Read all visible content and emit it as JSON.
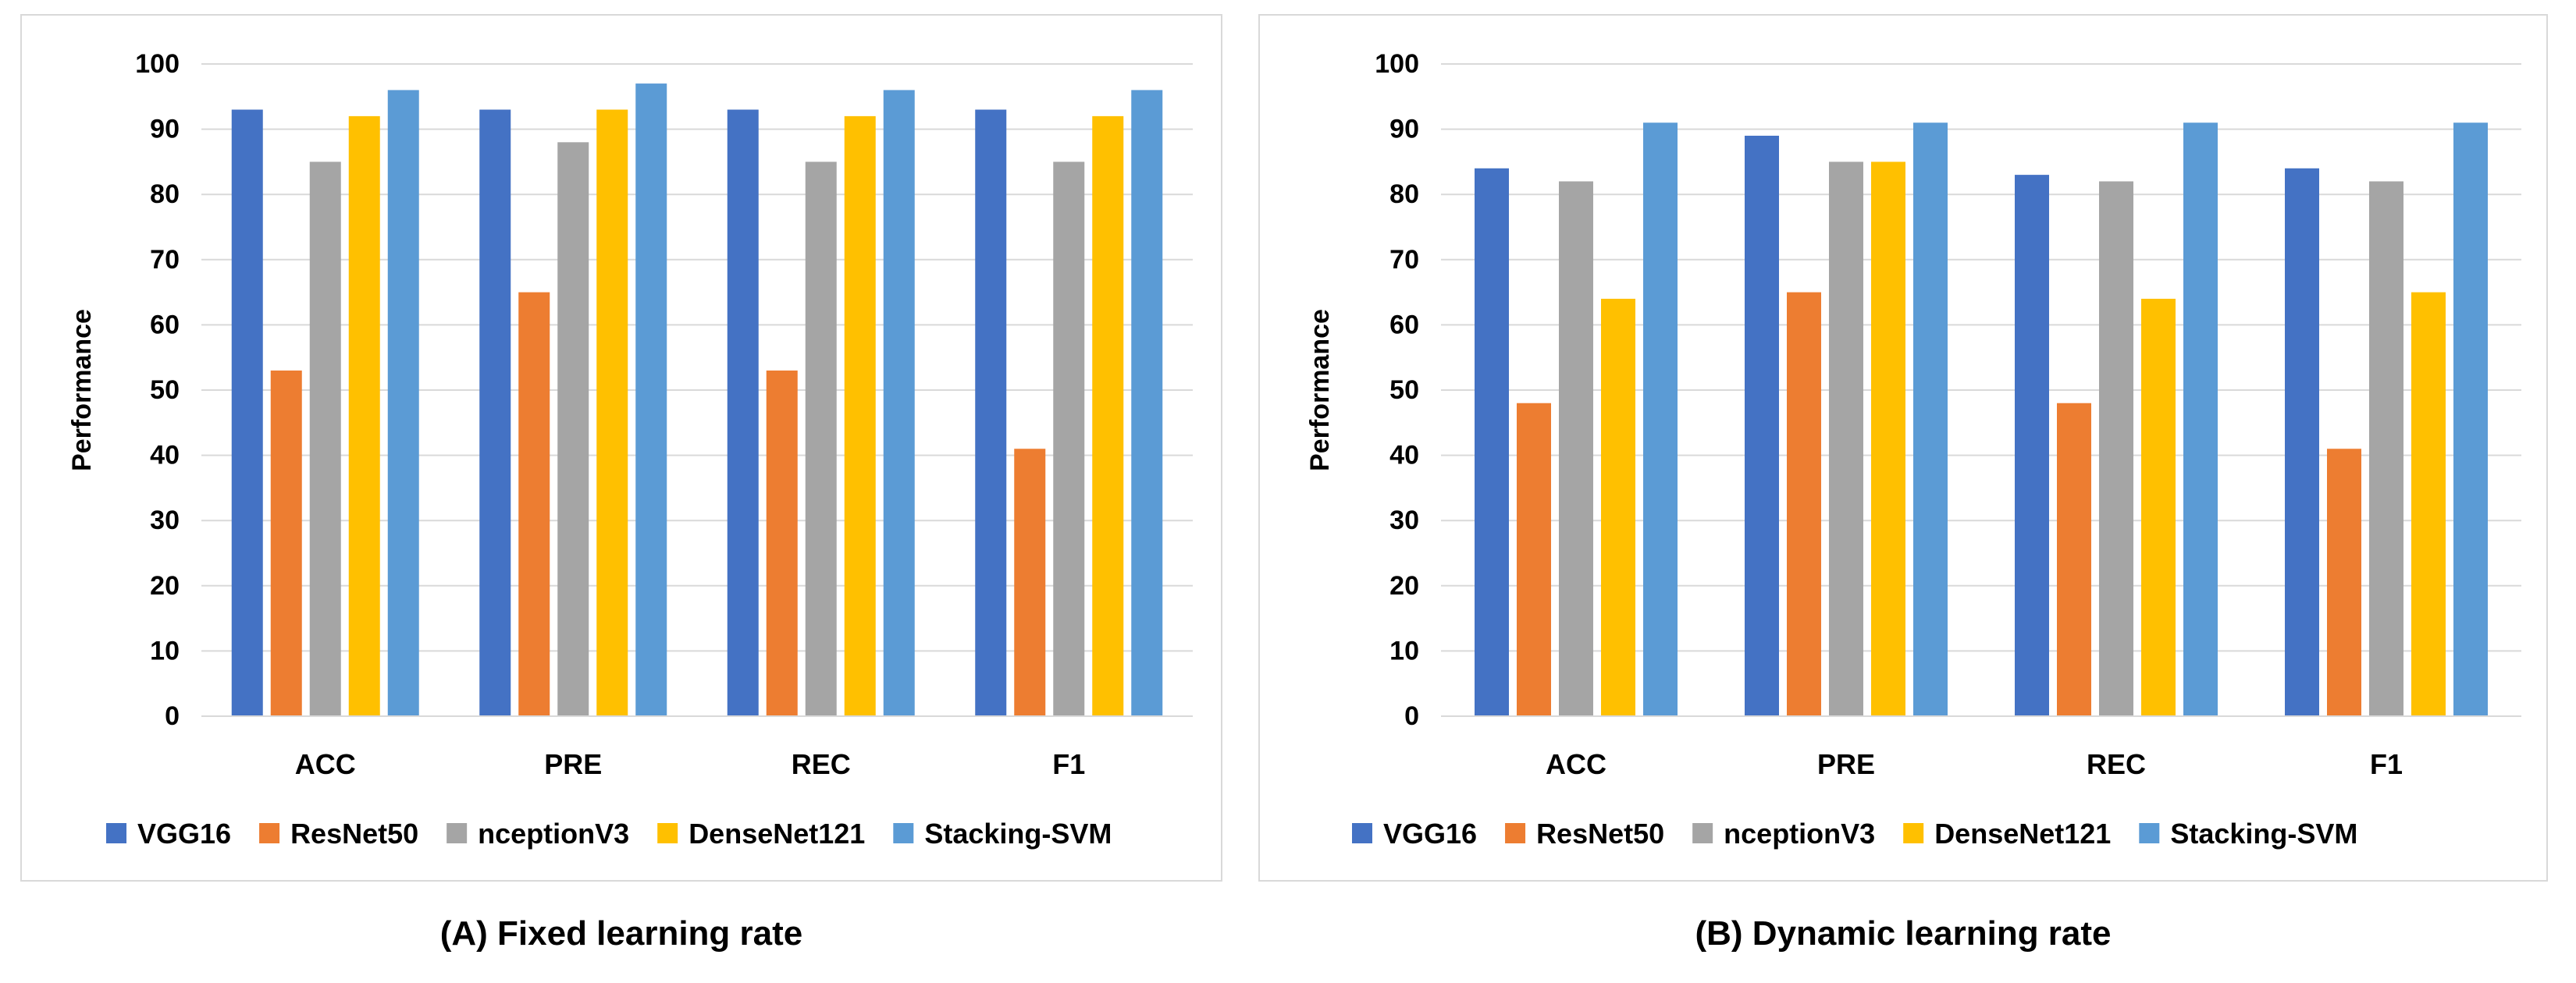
{
  "colors": {
    "VGG16": "#4472c4",
    "ResNet50": "#ed7d31",
    "nceptionV3": "#a5a5a5",
    "DenseNet121": "#ffc000",
    "Stacking-SVM": "#5b9bd5",
    "grid": "#d9d9d9",
    "text": "#000000"
  },
  "chart_data": [
    {
      "type": "bar",
      "title": "",
      "caption": "(A) Fixed learning rate",
      "xlabel": "",
      "ylabel": "Performance",
      "ylim": [
        0,
        100
      ],
      "yticks": [
        "0",
        "10",
        "20",
        "30",
        "40",
        "50",
        "60",
        "70",
        "80",
        "90",
        "100"
      ],
      "grid": true,
      "legend_position": "bottom",
      "categories": [
        "ACC",
        "PRE",
        "REC",
        "F1"
      ],
      "series": [
        {
          "name": "VGG16",
          "values": [
            93,
            93,
            93,
            93
          ]
        },
        {
          "name": "ResNet50",
          "values": [
            53,
            65,
            53,
            41
          ]
        },
        {
          "name": "nceptionV3",
          "values": [
            85,
            88,
            85,
            85
          ]
        },
        {
          "name": "DenseNet121",
          "values": [
            92,
            93,
            92,
            92
          ]
        },
        {
          "name": "Stacking-SVM",
          "values": [
            96,
            97,
            96,
            96
          ]
        }
      ]
    },
    {
      "type": "bar",
      "title": "",
      "caption": "(B) Dynamic learning rate",
      "xlabel": "",
      "ylabel": "Performance",
      "ylim": [
        0,
        100
      ],
      "yticks": [
        "0",
        "10",
        "20",
        "30",
        "40",
        "50",
        "60",
        "70",
        "80",
        "90",
        "100"
      ],
      "grid": true,
      "legend_position": "bottom",
      "categories": [
        "ACC",
        "PRE",
        "REC",
        "F1"
      ],
      "series": [
        {
          "name": "VGG16",
          "values": [
            84,
            89,
            83,
            84
          ]
        },
        {
          "name": "ResNet50",
          "values": [
            48,
            65,
            48,
            41
          ]
        },
        {
          "name": "nceptionV3",
          "values": [
            82,
            85,
            82,
            82
          ]
        },
        {
          "name": "DenseNet121",
          "values": [
            64,
            85,
            64,
            65
          ]
        },
        {
          "name": "Stacking-SVM",
          "values": [
            91,
            91,
            91,
            91
          ]
        }
      ]
    }
  ]
}
